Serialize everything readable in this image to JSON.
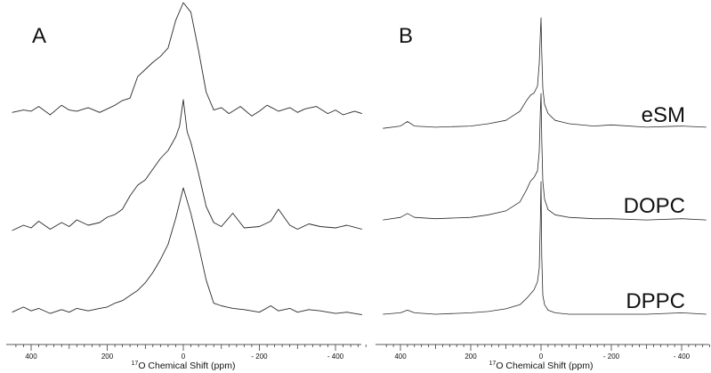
{
  "chart_data": [
    {
      "type": "line",
      "panel_label": "A",
      "xlabel": "Chemical Shift (ppm)",
      "xlabel_superscript": "17",
      "xlabel_nucleus": "O",
      "x_reversed": true,
      "xlim": [
        450,
        -470
      ],
      "x_ticks": [
        400,
        200,
        0,
        -200,
        -400
      ],
      "x_tick_labels": [
        "400",
        "200",
        "0",
        "- 200",
        "- 400"
      ],
      "grid": false,
      "series": [
        {
          "x": [
            450,
            420,
            400,
            380,
            350,
            320,
            300,
            280,
            250,
            220,
            200,
            180,
            160,
            140,
            120,
            100,
            80,
            60,
            40,
            20,
            0,
            -20,
            -40,
            -60,
            -80,
            -100,
            -120,
            -150,
            -180,
            -200,
            -220,
            -250,
            -280,
            -300,
            -320,
            -350,
            -380,
            -400,
            -420,
            -450,
            -470
          ],
          "values": [
            0.08,
            0.1,
            0.09,
            0.13,
            0.06,
            0.14,
            0.1,
            0.09,
            0.12,
            0.08,
            0.11,
            0.14,
            0.18,
            0.2,
            0.38,
            0.44,
            0.5,
            0.55,
            0.62,
            0.85,
            1.0,
            0.92,
            0.6,
            0.25,
            0.1,
            0.12,
            0.07,
            0.13,
            0.05,
            0.09,
            0.14,
            0.09,
            0.12,
            0.08,
            0.11,
            0.13,
            0.07,
            0.1,
            0.06,
            0.09,
            0.07
          ]
        },
        {
          "x": [
            450,
            420,
            400,
            380,
            350,
            320,
            300,
            280,
            250,
            220,
            200,
            180,
            160,
            140,
            120,
            100,
            80,
            60,
            40,
            20,
            10,
            0,
            -10,
            -20,
            -40,
            -60,
            -80,
            -100,
            -130,
            -160,
            -200,
            -230,
            -250,
            -280,
            -300,
            -330,
            -360,
            -400,
            -430,
            -470
          ],
          "values": [
            0.02,
            0.06,
            0.04,
            0.09,
            0.03,
            0.08,
            0.05,
            0.1,
            0.06,
            0.08,
            0.12,
            0.14,
            0.18,
            0.28,
            0.36,
            0.4,
            0.48,
            0.56,
            0.62,
            0.72,
            0.8,
            1.0,
            0.76,
            0.68,
            0.45,
            0.2,
            0.08,
            0.05,
            0.15,
            0.04,
            0.05,
            0.09,
            0.18,
            0.06,
            0.03,
            0.07,
            0.05,
            0.04,
            0.06,
            0.03
          ]
        },
        {
          "x": [
            450,
            420,
            400,
            380,
            350,
            320,
            300,
            280,
            250,
            220,
            200,
            180,
            160,
            140,
            120,
            100,
            80,
            60,
            40,
            20,
            0,
            -20,
            -40,
            -60,
            -80,
            -100,
            -130,
            -160,
            -200,
            -230,
            -250,
            -280,
            -300,
            -330,
            -360,
            -400,
            -430,
            -470
          ],
          "values": [
            0.03,
            0.07,
            0.04,
            0.06,
            0.02,
            0.05,
            0.03,
            0.06,
            0.04,
            0.06,
            0.07,
            0.1,
            0.12,
            0.16,
            0.2,
            0.26,
            0.34,
            0.44,
            0.56,
            0.76,
            1.0,
            0.8,
            0.55,
            0.28,
            0.1,
            0.08,
            0.06,
            0.05,
            0.03,
            0.08,
            0.04,
            0.06,
            0.03,
            0.05,
            0.04,
            0.02,
            0.03,
            0.01
          ]
        }
      ]
    },
    {
      "type": "line",
      "panel_label": "B",
      "xlabel": "Chemical Shift (ppm)",
      "xlabel_superscript": "17",
      "xlabel_nucleus": "O",
      "x_reversed": true,
      "xlim": [
        450,
        -470
      ],
      "x_ticks": [
        400,
        200,
        0,
        -200,
        -400
      ],
      "x_tick_labels": [
        "400",
        "200",
        "0",
        "- 200",
        "- 400"
      ],
      "grid": false,
      "series": [
        {
          "name": "eSM",
          "x": [
            450,
            400,
            380,
            360,
            300,
            200,
            150,
            100,
            60,
            40,
            30,
            20,
            10,
            5,
            2,
            0,
            -2,
            -5,
            -10,
            -20,
            -40,
            -80,
            -150,
            -200,
            -300,
            -400,
            -470
          ],
          "values": [
            0.03,
            0.05,
            0.09,
            0.05,
            0.04,
            0.05,
            0.07,
            0.1,
            0.18,
            0.28,
            0.32,
            0.34,
            0.4,
            0.6,
            0.85,
            1.0,
            0.7,
            0.38,
            0.24,
            0.16,
            0.1,
            0.07,
            0.05,
            0.06,
            0.04,
            0.05,
            0.04
          ]
        },
        {
          "name": "DOPC",
          "x": [
            450,
            400,
            380,
            360,
            300,
            200,
            150,
            100,
            60,
            40,
            30,
            20,
            10,
            5,
            2,
            0,
            -2,
            -5,
            -10,
            -20,
            -40,
            -80,
            -150,
            -200,
            -300,
            -400,
            -470
          ],
          "values": [
            0.02,
            0.04,
            0.07,
            0.04,
            0.03,
            0.04,
            0.06,
            0.09,
            0.16,
            0.26,
            0.32,
            0.35,
            0.4,
            0.55,
            0.85,
            1.0,
            0.65,
            0.32,
            0.18,
            0.1,
            0.06,
            0.04,
            0.03,
            0.03,
            0.02,
            0.03,
            0.02
          ]
        },
        {
          "name": "DPPC",
          "x": [
            450,
            400,
            380,
            360,
            300,
            200,
            150,
            100,
            60,
            40,
            20,
            10,
            5,
            2,
            0,
            -2,
            -5,
            -10,
            -20,
            -40,
            -80,
            -150,
            -200,
            -300,
            -400,
            -470
          ],
          "values": [
            0.02,
            0.03,
            0.05,
            0.03,
            0.02,
            0.03,
            0.04,
            0.06,
            0.09,
            0.14,
            0.2,
            0.26,
            0.36,
            0.7,
            1.0,
            0.45,
            0.16,
            0.09,
            0.05,
            0.03,
            0.02,
            0.02,
            0.02,
            0.02,
            0.03,
            0.02
          ]
        }
      ]
    }
  ]
}
